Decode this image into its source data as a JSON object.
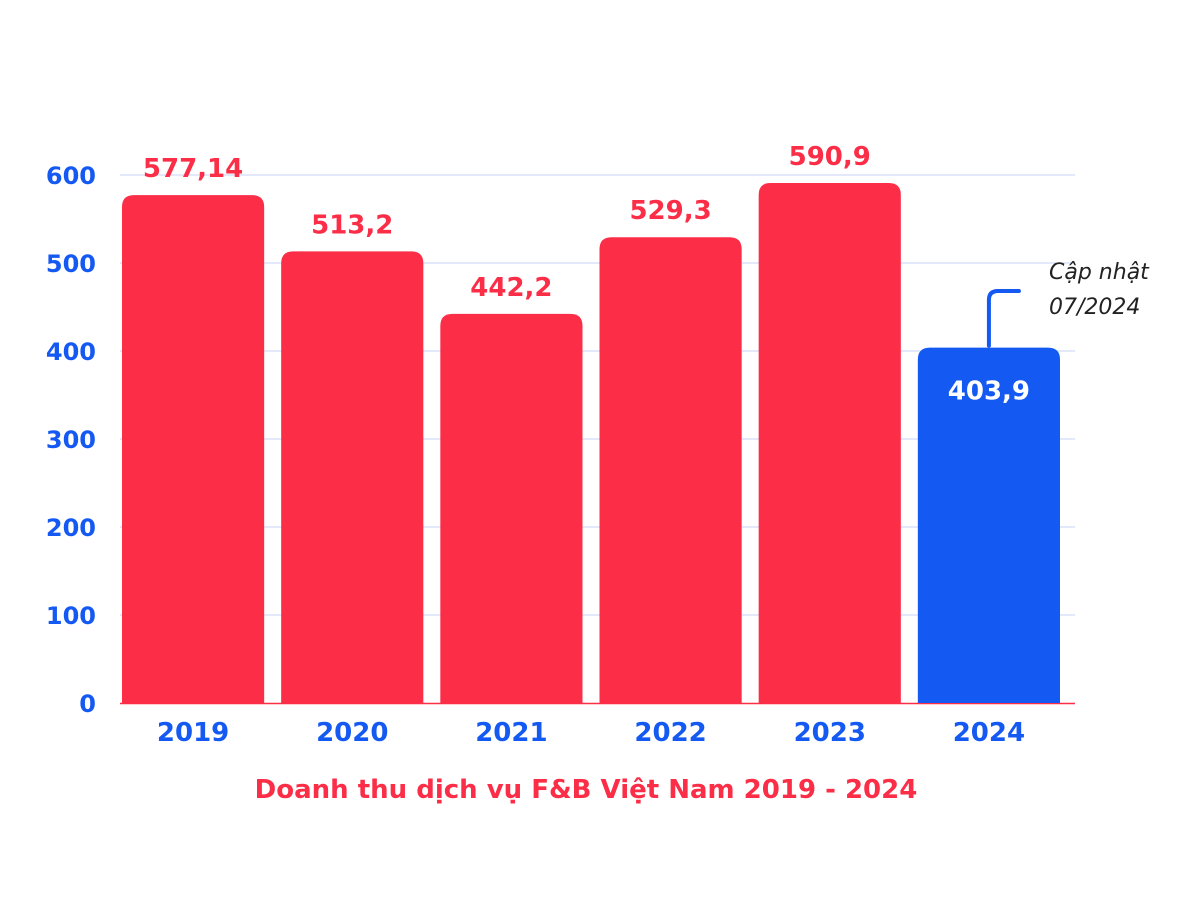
{
  "colors": {
    "bar_default": "#fb2d47",
    "bar_highlight": "#1459f2",
    "axis_text": "#1459f2",
    "label_text": "#fb2d47",
    "highlight_label_text": "#ffffff",
    "gridline": "#c7d2f7",
    "baseline": "#fb2d47",
    "note_text": "#222222",
    "note_connector": "#1459f2"
  },
  "chart_data": {
    "type": "bar",
    "title": "Doanh thu dịch vụ F&B Việt Nam 2019 - 2024",
    "xlabel": "",
    "ylabel": "",
    "categories": [
      "2019",
      "2020",
      "2021",
      "2022",
      "2023",
      "2024"
    ],
    "values": [
      577.14,
      513.2,
      442.2,
      529.3,
      590.9,
      403.9
    ],
    "value_labels": [
      "577,14",
      "513,2",
      "442,2",
      "529,3",
      "590,9",
      "403,9"
    ],
    "highlight_index": 5,
    "ylim": [
      0,
      600
    ],
    "yticks": [
      0,
      100,
      200,
      300,
      400,
      500,
      600
    ],
    "grid": true,
    "legend": "none",
    "annotation": {
      "lines": [
        "Cập nhật",
        "07/2024"
      ],
      "target_category": "2024"
    }
  }
}
